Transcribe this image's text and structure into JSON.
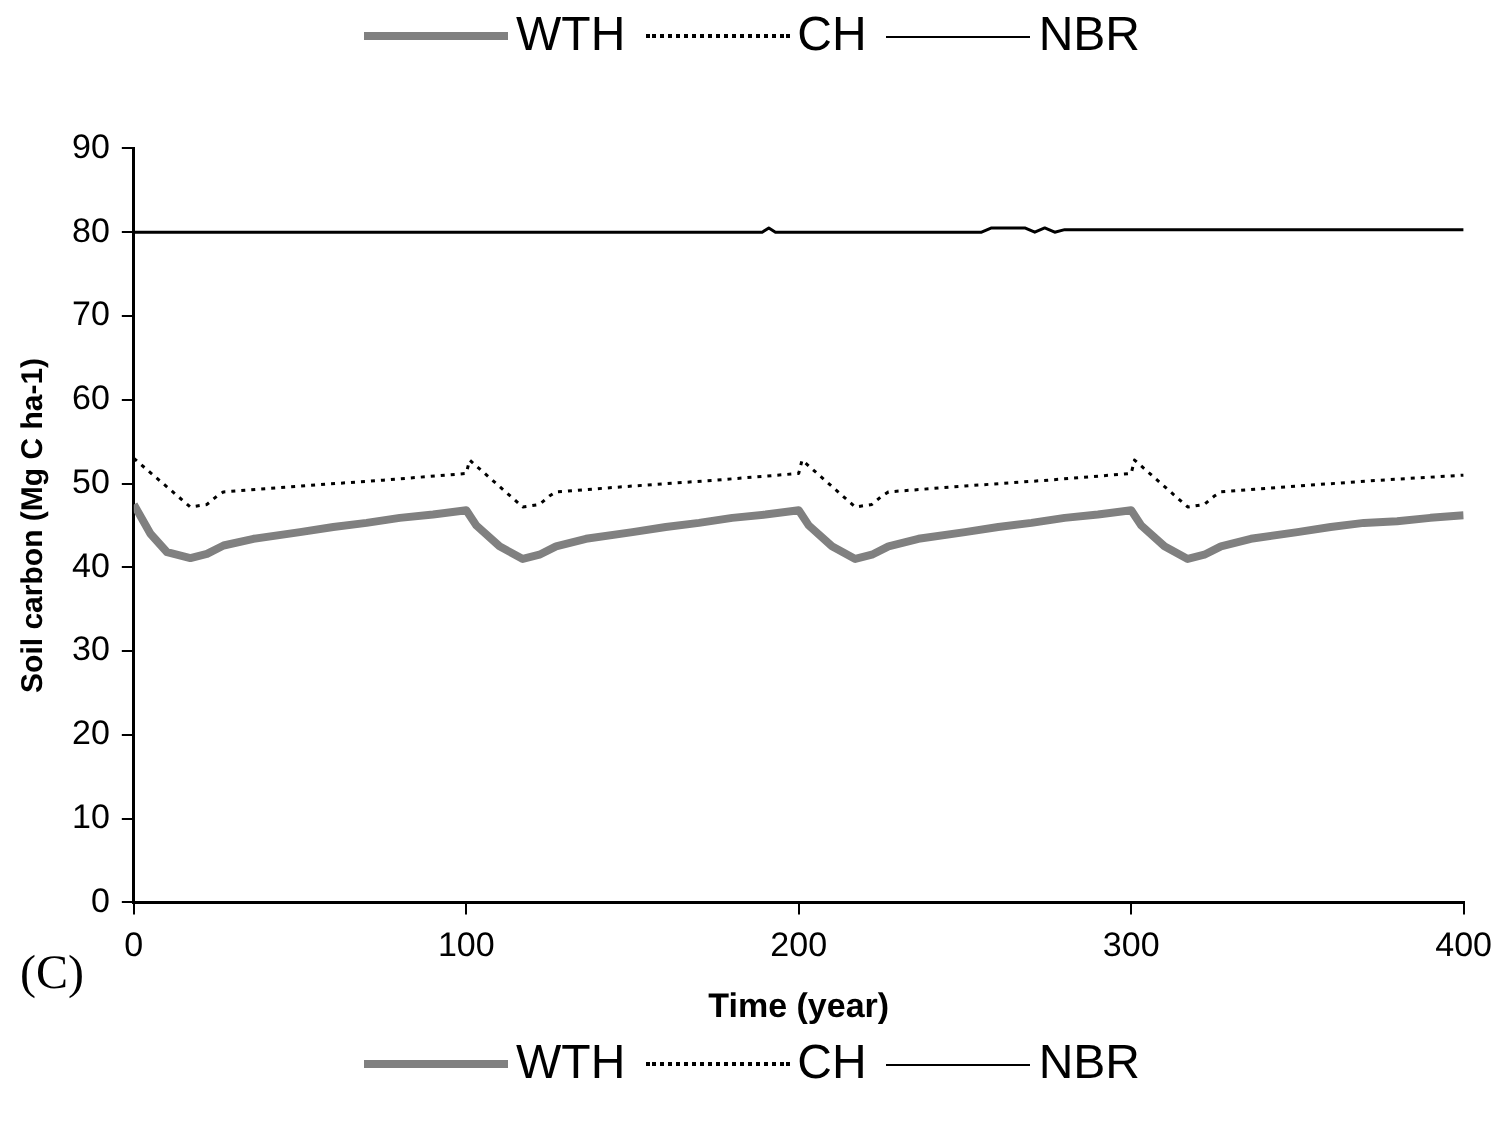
{
  "chart_data": {
    "type": "line",
    "xlabel": "Time (year)",
    "ylabel": "Soil carbon (Mg C ha-1)",
    "annotations": [
      "(C)"
    ],
    "xlim": [
      0,
      400
    ],
    "xticks": [
      0,
      100,
      200,
      300,
      400
    ],
    "ylim": [
      0,
      90
    ],
    "yticks": [
      0,
      10,
      20,
      30,
      40,
      50,
      60,
      70,
      80,
      90
    ],
    "grid": false,
    "legend": "top",
    "marker": "none",
    "series": [
      {
        "name": "WTH",
        "color": "#808080",
        "line_style": "solid",
        "x": [
          0,
          5,
          10,
          17,
          22,
          27,
          36,
          50,
          60,
          70,
          80,
          90,
          100,
          103,
          110,
          117,
          122,
          127,
          136,
          150,
          160,
          170,
          180,
          190,
          200,
          203,
          210,
          217,
          222,
          227,
          236,
          250,
          260,
          270,
          280,
          290,
          300,
          303,
          310,
          317,
          322,
          327,
          336,
          350,
          360,
          370,
          380,
          390,
          400
        ],
        "values": [
          47.5,
          44,
          41.8,
          41.1,
          41.6,
          42.6,
          43.4,
          44.2,
          44.8,
          45.3,
          45.9,
          46.3,
          46.8,
          45,
          42.5,
          41,
          41.5,
          42.5,
          43.4,
          44.2,
          44.8,
          45.3,
          45.9,
          46.3,
          46.8,
          45,
          42.5,
          41,
          41.5,
          42.5,
          43.4,
          44.2,
          44.8,
          45.3,
          45.9,
          46.3,
          46.8,
          45,
          42.5,
          41,
          41.5,
          42.5,
          43.4,
          44.2,
          44.8,
          45.3,
          45.5,
          45.9,
          46.2
        ]
      },
      {
        "name": "CH",
        "color": "#000000",
        "line_style": "dotted",
        "x": [
          0,
          17,
          22,
          25,
          27,
          50,
          75,
          100,
          101,
          117,
          122,
          125,
          127,
          150,
          175,
          200,
          201,
          217,
          222,
          225,
          227,
          250,
          275,
          300,
          301,
          317,
          322,
          325,
          327,
          350,
          375,
          400
        ],
        "values": [
          53,
          47.2,
          47.5,
          48.5,
          49,
          49.7,
          50.4,
          51.2,
          52.8,
          47.2,
          47.5,
          48.5,
          49,
          49.7,
          50.4,
          51.2,
          52.8,
          47.2,
          47.5,
          48.5,
          49,
          49.7,
          50.4,
          51.2,
          52.8,
          47.2,
          47.5,
          48.5,
          49,
          49.7,
          50.4,
          51
        ]
      },
      {
        "name": "NBR",
        "color": "#000000",
        "line_style": "solid",
        "x": [
          0,
          189,
          191,
          193,
          255,
          258,
          268,
          271,
          274,
          277,
          280,
          400
        ],
        "values": [
          80,
          80,
          80.5,
          80,
          80,
          80.5,
          80.5,
          80,
          80.5,
          80,
          80.3,
          80.3
        ]
      }
    ]
  }
}
